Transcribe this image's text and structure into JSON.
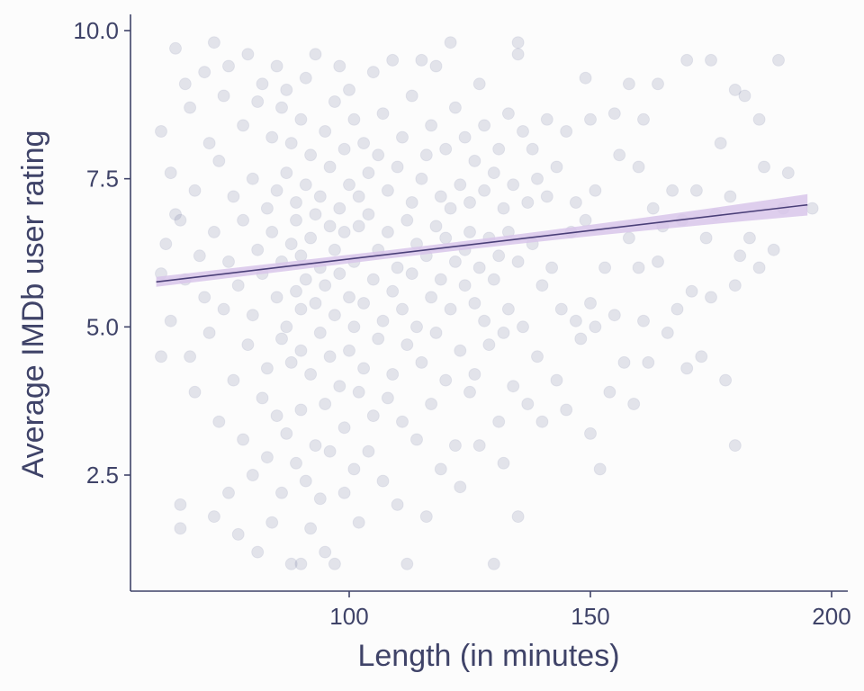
{
  "chart_data": {
    "type": "scatter",
    "title": "",
    "xlabel": "Length (in minutes)",
    "ylabel": "Average IMDb user rating",
    "xlim": [
      53,
      203
    ],
    "ylim": [
      0.5,
      10.3
    ],
    "x_ticks": [
      100,
      150,
      200
    ],
    "x_tick_labels": [
      "100",
      "150",
      "200"
    ],
    "y_ticks": [
      2.5,
      5.0,
      7.5,
      10.0
    ],
    "y_tick_labels": [
      "2.5",
      "5.0",
      "7.5",
      "10.0"
    ],
    "grid": false,
    "legend": "none",
    "colors": {
      "points": "#5b6290",
      "trend_line": "#4a3f78",
      "confidence_band": "#d8c6ea",
      "axis_text": "#3f4368",
      "background": "#fcfcfc"
    },
    "trend": {
      "method": "linear",
      "x": [
        60,
        195
      ],
      "y": [
        5.76,
        7.06
      ],
      "band_halfwidth": [
        0.07,
        0.18
      ]
    },
    "series": [
      {
        "points": [
          [
            61,
            4.5
          ],
          [
            61,
            5.9
          ],
          [
            61,
            8.3
          ],
          [
            62,
            6.4
          ],
          [
            63,
            5.1
          ],
          [
            63,
            7.6
          ],
          [
            64,
            9.7
          ],
          [
            64,
            6.9
          ],
          [
            65,
            2.0
          ],
          [
            65,
            1.6
          ],
          [
            65,
            6.8
          ],
          [
            66,
            9.1
          ],
          [
            66,
            5.8
          ],
          [
            67,
            4.5
          ],
          [
            67,
            8.7
          ],
          [
            68,
            7.3
          ],
          [
            68,
            3.9
          ],
          [
            69,
            6.2
          ],
          [
            70,
            9.3
          ],
          [
            70,
            5.5
          ],
          [
            71,
            8.1
          ],
          [
            71,
            4.9
          ],
          [
            72,
            1.8
          ],
          [
            72,
            6.6
          ],
          [
            72,
            9.8
          ],
          [
            73,
            7.8
          ],
          [
            73,
            3.4
          ],
          [
            74,
            5.3
          ],
          [
            74,
            8.9
          ],
          [
            75,
            2.2
          ],
          [
            75,
            6.1
          ],
          [
            75,
            9.4
          ],
          [
            76,
            4.1
          ],
          [
            76,
            7.2
          ],
          [
            77,
            1.5
          ],
          [
            77,
            5.7
          ],
          [
            78,
            8.4
          ],
          [
            78,
            3.1
          ],
          [
            78,
            6.8
          ],
          [
            79,
            9.6
          ],
          [
            79,
            4.7
          ],
          [
            80,
            2.5
          ],
          [
            80,
            7.5
          ],
          [
            80,
            5.2
          ],
          [
            81,
            8.8
          ],
          [
            81,
            1.2
          ],
          [
            81,
            6.3
          ],
          [
            82,
            3.8
          ],
          [
            82,
            9.1
          ],
          [
            82,
            5.9
          ],
          [
            83,
            7.0
          ],
          [
            83,
            4.3
          ],
          [
            83,
            2.8
          ],
          [
            84,
            8.2
          ],
          [
            84,
            6.6
          ],
          [
            84,
            1.7
          ],
          [
            85,
            5.5
          ],
          [
            85,
            9.4
          ],
          [
            85,
            3.5
          ],
          [
            85,
            7.3
          ],
          [
            86,
            4.8
          ],
          [
            86,
            6.1
          ],
          [
            86,
            8.7
          ],
          [
            86,
            2.2
          ],
          [
            87,
            5.0
          ],
          [
            87,
            7.6
          ],
          [
            87,
            3.2
          ],
          [
            87,
            9.0
          ],
          [
            88,
            6.4
          ],
          [
            88,
            4.4
          ],
          [
            88,
            1.0
          ],
          [
            88,
            8.1
          ],
          [
            89,
            5.6
          ],
          [
            89,
            7.1
          ],
          [
            89,
            2.7
          ],
          [
            89,
            6.8
          ],
          [
            90,
            1.0
          ],
          [
            90,
            4.6
          ],
          [
            90,
            6.2
          ],
          [
            90,
            8.5
          ],
          [
            90,
            5.3
          ],
          [
            90,
            3.6
          ],
          [
            91,
            7.4
          ],
          [
            91,
            5.8
          ],
          [
            91,
            2.4
          ],
          [
            91,
            9.2
          ],
          [
            92,
            6.5
          ],
          [
            92,
            4.2
          ],
          [
            92,
            1.6
          ],
          [
            92,
            7.9
          ],
          [
            93,
            5.4
          ],
          [
            93,
            3.0
          ],
          [
            93,
            6.9
          ],
          [
            93,
            9.6
          ],
          [
            94,
            4.9
          ],
          [
            94,
            7.2
          ],
          [
            94,
            2.1
          ],
          [
            94,
            6.0
          ],
          [
            95,
            5.7
          ],
          [
            95,
            8.3
          ],
          [
            95,
            3.7
          ],
          [
            95,
            1.2
          ],
          [
            96,
            6.7
          ],
          [
            96,
            4.5
          ],
          [
            96,
            7.7
          ],
          [
            96,
            2.9
          ],
          [
            97,
            5.2
          ],
          [
            97,
            8.8
          ],
          [
            97,
            6.3
          ],
          [
            97,
            1.0
          ],
          [
            98,
            7.0
          ],
          [
            98,
            4.0
          ],
          [
            98,
            5.9
          ],
          [
            98,
            9.4
          ],
          [
            99,
            6.6
          ],
          [
            99,
            3.3
          ],
          [
            99,
            8.0
          ],
          [
            99,
            2.2
          ],
          [
            100,
            5.5
          ],
          [
            100,
            7.4
          ],
          [
            100,
            4.6
          ],
          [
            100,
            9.0
          ],
          [
            101,
            6.1
          ],
          [
            101,
            2.6
          ],
          [
            101,
            8.5
          ],
          [
            101,
            5.0
          ],
          [
            102,
            7.2
          ],
          [
            102,
            3.9
          ],
          [
            102,
            6.7
          ],
          [
            102,
            1.7
          ],
          [
            103,
            5.4
          ],
          [
            103,
            8.1
          ],
          [
            103,
            4.3
          ],
          [
            104,
            6.9
          ],
          [
            104,
            2.9
          ],
          [
            104,
            7.6
          ],
          [
            105,
            5.8
          ],
          [
            105,
            9.3
          ],
          [
            105,
            3.5
          ],
          [
            106,
            6.3
          ],
          [
            106,
            4.8
          ],
          [
            106,
            7.9
          ],
          [
            107,
            5.1
          ],
          [
            107,
            8.6
          ],
          [
            107,
            2.4
          ],
          [
            108,
            6.6
          ],
          [
            108,
            3.8
          ],
          [
            108,
            7.3
          ],
          [
            109,
            5.6
          ],
          [
            109,
            9.5
          ],
          [
            109,
            4.2
          ],
          [
            110,
            6.0
          ],
          [
            110,
            2.0
          ],
          [
            110,
            7.7
          ],
          [
            111,
            5.3
          ],
          [
            111,
            8.2
          ],
          [
            111,
            3.4
          ],
          [
            112,
            6.8
          ],
          [
            112,
            1.0
          ],
          [
            112,
            4.7
          ],
          [
            113,
            7.1
          ],
          [
            113,
            5.9
          ],
          [
            113,
            8.9
          ],
          [
            114,
            6.4
          ],
          [
            114,
            3.1
          ],
          [
            114,
            5.0
          ],
          [
            115,
            7.5
          ],
          [
            115,
            9.5
          ],
          [
            115,
            4.4
          ],
          [
            116,
            6.2
          ],
          [
            116,
            1.8
          ],
          [
            116,
            7.9
          ],
          [
            117,
            5.5
          ],
          [
            117,
            3.7
          ],
          [
            117,
            8.4
          ],
          [
            118,
            6.7
          ],
          [
            118,
            4.9
          ],
          [
            118,
            9.4
          ],
          [
            119,
            7.2
          ],
          [
            119,
            2.6
          ],
          [
            119,
            5.8
          ],
          [
            120,
            6.5
          ],
          [
            120,
            8.0
          ],
          [
            120,
            4.1
          ],
          [
            121,
            9.8
          ],
          [
            121,
            7.0
          ],
          [
            121,
            5.3
          ],
          [
            122,
            3.0
          ],
          [
            122,
            6.1
          ],
          [
            122,
            8.7
          ],
          [
            123,
            7.4
          ],
          [
            123,
            4.6
          ],
          [
            123,
            2.3
          ],
          [
            124,
            6.3
          ],
          [
            124,
            5.7
          ],
          [
            124,
            8.2
          ],
          [
            125,
            7.1
          ],
          [
            125,
            3.9
          ],
          [
            125,
            6.6
          ],
          [
            126,
            4.2
          ],
          [
            126,
            7.8
          ],
          [
            126,
            5.4
          ],
          [
            127,
            9.1
          ],
          [
            127,
            6.0
          ],
          [
            127,
            3.0
          ],
          [
            128,
            7.3
          ],
          [
            128,
            5.1
          ],
          [
            128,
            8.4
          ],
          [
            129,
            4.7
          ],
          [
            129,
            6.5
          ],
          [
            130,
            1.0
          ],
          [
            130,
            7.6
          ],
          [
            130,
            5.8
          ],
          [
            131,
            8.0
          ],
          [
            131,
            3.4
          ],
          [
            131,
            6.2
          ],
          [
            132,
            4.9
          ],
          [
            132,
            7.0
          ],
          [
            132,
            2.7
          ],
          [
            133,
            6.6
          ],
          [
            133,
            8.6
          ],
          [
            133,
            5.3
          ],
          [
            134,
            4.0
          ],
          [
            134,
            7.4
          ],
          [
            135,
            9.8
          ],
          [
            135,
            1.8
          ],
          [
            135,
            6.1
          ],
          [
            135,
            9.6
          ],
          [
            136,
            5.0
          ],
          [
            136,
            8.3
          ],
          [
            137,
            7.1
          ],
          [
            137,
            3.7
          ],
          [
            138,
            6.4
          ],
          [
            138,
            8.0
          ],
          [
            139,
            4.5
          ],
          [
            139,
            7.5
          ],
          [
            140,
            5.7
          ],
          [
            140,
            3.4
          ],
          [
            141,
            7.2
          ],
          [
            141,
            8.5
          ],
          [
            142,
            6.0
          ],
          [
            143,
            4.1
          ],
          [
            143,
            7.7
          ],
          [
            144,
            5.3
          ],
          [
            145,
            8.3
          ],
          [
            145,
            3.6
          ],
          [
            146,
            6.6
          ],
          [
            147,
            7.1
          ],
          [
            147,
            5.1
          ],
          [
            148,
            4.8
          ],
          [
            149,
            9.2
          ],
          [
            149,
            6.8
          ],
          [
            150,
            5.4
          ],
          [
            150,
            8.5
          ],
          [
            150,
            3.2
          ],
          [
            151,
            5.0
          ],
          [
            151,
            7.3
          ],
          [
            152,
            2.6
          ],
          [
            153,
            6.0
          ],
          [
            154,
            3.9
          ],
          [
            155,
            8.6
          ],
          [
            155,
            5.2
          ],
          [
            156,
            7.9
          ],
          [
            157,
            4.4
          ],
          [
            158,
            6.5
          ],
          [
            158,
            9.1
          ],
          [
            159,
            3.7
          ],
          [
            160,
            6.0
          ],
          [
            160,
            7.7
          ],
          [
            161,
            8.5
          ],
          [
            161,
            5.1
          ],
          [
            162,
            4.4
          ],
          [
            163,
            7.0
          ],
          [
            164,
            6.1
          ],
          [
            164,
            9.1
          ],
          [
            165,
            6.7
          ],
          [
            166,
            4.9
          ],
          [
            167,
            7.3
          ],
          [
            168,
            5.3
          ],
          [
            169,
            6.8
          ],
          [
            170,
            9.5
          ],
          [
            170,
            4.3
          ],
          [
            171,
            5.6
          ],
          [
            172,
            7.3
          ],
          [
            173,
            4.5
          ],
          [
            174,
            6.5
          ],
          [
            175,
            9.5
          ],
          [
            175,
            5.5
          ],
          [
            176,
            6.9
          ],
          [
            177,
            8.1
          ],
          [
            178,
            4.1
          ],
          [
            179,
            7.2
          ],
          [
            180,
            3.0
          ],
          [
            180,
            9.0
          ],
          [
            180,
            5.7
          ],
          [
            181,
            6.2
          ],
          [
            182,
            8.9
          ],
          [
            183,
            6.5
          ],
          [
            185,
            6.0
          ],
          [
            185,
            8.5
          ],
          [
            186,
            7.7
          ],
          [
            188,
            6.3
          ],
          [
            189,
            9.5
          ],
          [
            190,
            7.0
          ],
          [
            191,
            7.6
          ],
          [
            196,
            7.0
          ]
        ]
      }
    ]
  }
}
